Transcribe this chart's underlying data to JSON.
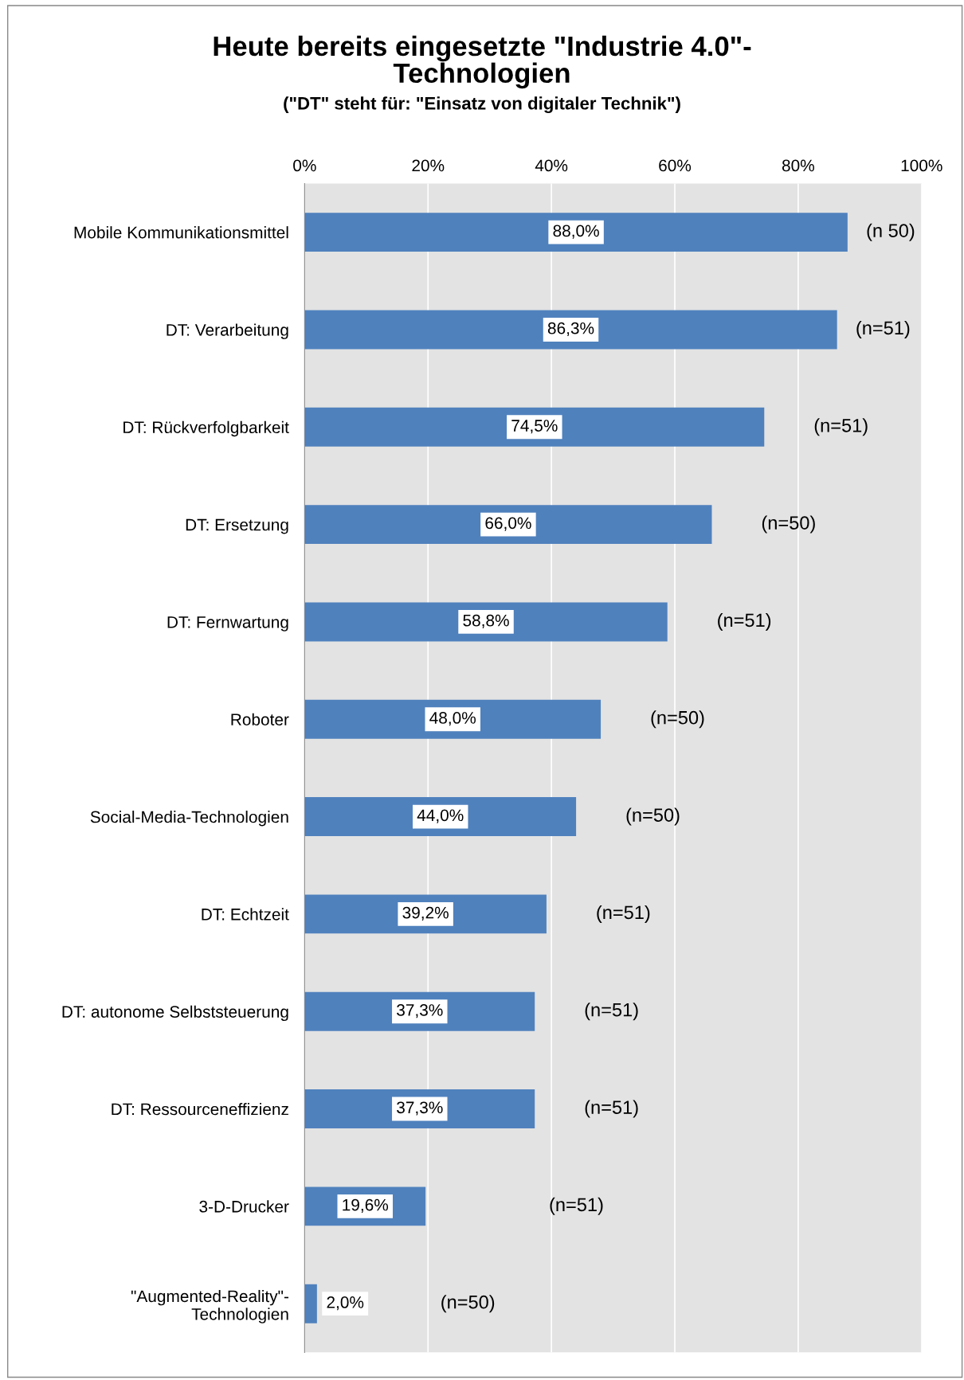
{
  "chart_data": {
    "type": "bar",
    "orientation": "horizontal",
    "title": "Heute bereits eingesetzte \"Industrie 4.0\"-\nTechnologien",
    "subtitle": "(\"DT\" steht für: \"Einsatz von digitaler Technik\")",
    "categories": [
      "Mobile Kommunikationsmittel",
      "DT: Verarbeitung",
      "DT: Rückverfolgbarkeit",
      "DT: Ersetzung",
      "DT: Fernwartung",
      "Roboter",
      "Social-Media-Technologien",
      "DT: Echtzeit",
      "DT: autonome Selbststeuerung",
      "DT: Ressourceneffizienz",
      "3-D-Drucker",
      "\"Augmented-Reality\"-\nTechnologien"
    ],
    "values": [
      88.0,
      86.3,
      74.5,
      66.0,
      58.8,
      48.0,
      44.0,
      39.2,
      37.3,
      37.3,
      19.6,
      2.0
    ],
    "value_labels": [
      "88,0%",
      "86,3%",
      "74,5%",
      "66,0%",
      "58,8%",
      "48,0%",
      "44,0%",
      "39,2%",
      "37,3%",
      "37,3%",
      "19,6%",
      "2,0%"
    ],
    "color": "#4f81bd",
    "xlim": [
      0,
      100
    ],
    "xticks": [
      {
        "value": 0,
        "label": "0%"
      },
      {
        "value": 20,
        "label": "20%"
      },
      {
        "value": 40,
        "label": "40%"
      },
      {
        "value": 60,
        "label": "60%"
      },
      {
        "value": 80,
        "label": "80%"
      },
      {
        "value": 100,
        "label": "100%"
      }
    ],
    "grid": "x",
    "legend": false,
    "annotations": [
      "(n 50)",
      "(n=51)",
      "(n=51)",
      "(n=50)",
      "(n=51)",
      "(n=50)",
      "(n=50)",
      "(n=51)",
      "(n=51)",
      "(n=51)",
      "(n=51)",
      "(n=50)"
    ]
  }
}
